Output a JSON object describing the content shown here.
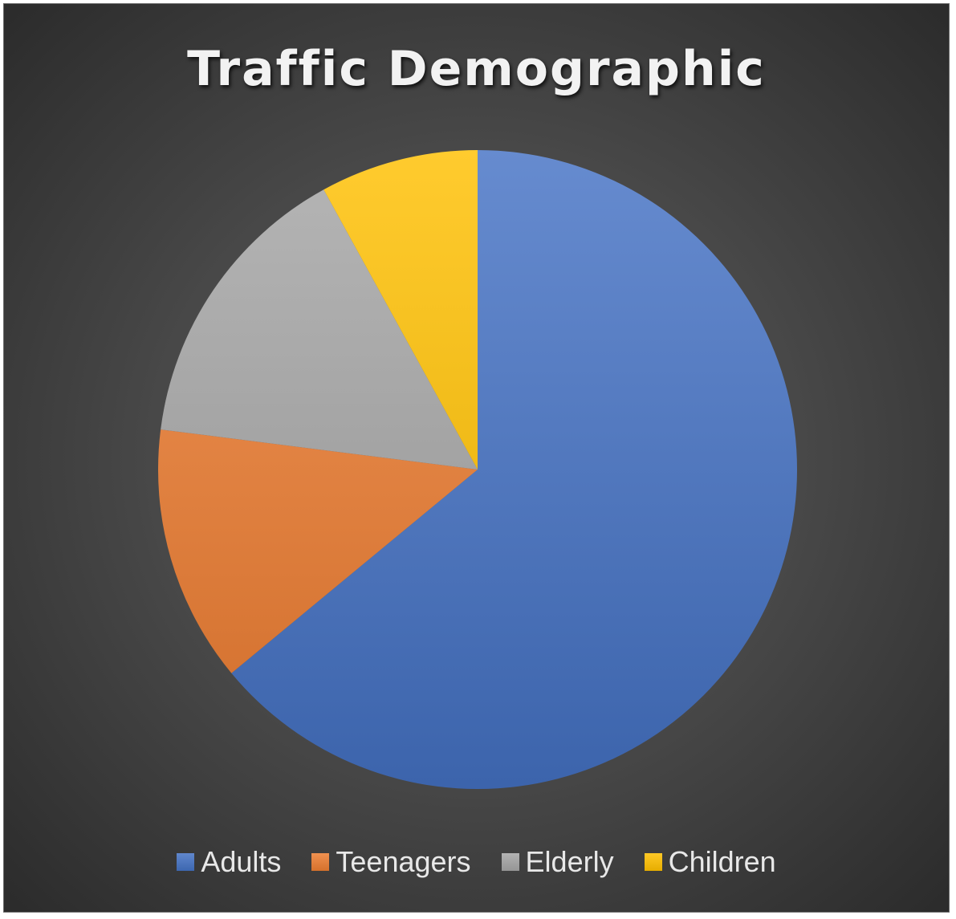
{
  "chart_data": {
    "type": "pie",
    "title": "Traffic Demographic",
    "categories": [
      "Adults",
      "Teenagers",
      "Elderly",
      "Children"
    ],
    "values": [
      64,
      13,
      15,
      8
    ],
    "colors": [
      "#4472C4",
      "#ED7D31",
      "#A5A5A5",
      "#FFC000"
    ],
    "legend_position": "bottom",
    "start_angle": "12 o'clock",
    "direction": "clockwise"
  }
}
